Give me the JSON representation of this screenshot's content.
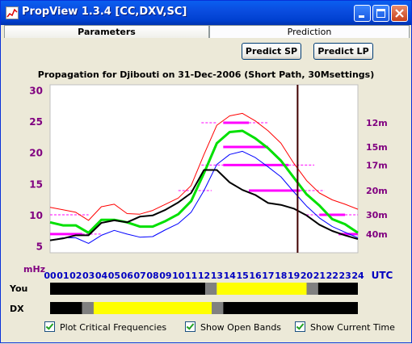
{
  "window": {
    "title": "PropView 1.3.4  [CC,DXV,SC]",
    "icon": "chart-icon"
  },
  "tabs": [
    {
      "label": "Parameters",
      "active": false
    },
    {
      "label": "Prediction",
      "active": true
    }
  ],
  "buttons": {
    "predict_sp": "Predict SP",
    "predict_lp": "Predict LP"
  },
  "checkboxes": [
    {
      "label": "Plot Critical Frequencies",
      "checked": true
    },
    {
      "label": "Show Open Bands",
      "checked": true
    },
    {
      "label": "Show Current Time",
      "checked": true
    }
  ],
  "chart_data": {
    "type": "line",
    "title": "Propagation for Djibouti on 31-Dec-2006 (Short Path, 30Msettings)",
    "ylabel_unit": "mHz",
    "xlabel_unit": "UTC",
    "x": [
      0,
      1,
      2,
      3,
      4,
      5,
      6,
      7,
      8,
      9,
      10,
      11,
      12,
      13,
      14,
      15,
      16,
      17,
      18,
      19,
      20,
      21,
      22,
      23,
      24
    ],
    "xticks": [
      "00",
      "01",
      "02",
      "03",
      "04",
      "05",
      "06",
      "07",
      "08",
      "09",
      "10",
      "11",
      "12",
      "13",
      "14",
      "15",
      "16",
      "17",
      "18",
      "19",
      "20",
      "21",
      "22",
      "23",
      "24"
    ],
    "yticks": [
      "5",
      "10",
      "15",
      "20",
      "25",
      "30"
    ],
    "ylim": [
      4,
      31
    ],
    "xlim": [
      0,
      24
    ],
    "series": [
      {
        "color": "#ff0000",
        "width": 1,
        "values": [
          11.3,
          10.9,
          10.5,
          9.2,
          11.4,
          11.8,
          10.3,
          10.2,
          10.8,
          11.8,
          12.8,
          14.8,
          19.8,
          24.5,
          26.0,
          26.4,
          25.2,
          23.6,
          21.6,
          18.4,
          15.6,
          13.6,
          12.5,
          11.8,
          11.0
        ]
      },
      {
        "color": "#00e000",
        "width": 3,
        "values": [
          8.9,
          8.4,
          8.4,
          7.2,
          9.3,
          9.3,
          8.9,
          8.2,
          8.2,
          9.1,
          10.2,
          12.3,
          16.8,
          21.6,
          23.4,
          23.6,
          22.4,
          20.8,
          18.8,
          16.1,
          13.4,
          11.6,
          9.4,
          8.6,
          7.2
        ]
      },
      {
        "color": "#0000ff",
        "width": 1,
        "values": [
          6.0,
          6.4,
          6.4,
          5.5,
          6.8,
          7.6,
          7.0,
          6.5,
          6.6,
          7.7,
          8.7,
          10.5,
          14.0,
          18.2,
          19.8,
          20.3,
          19.3,
          17.8,
          16.2,
          13.8,
          11.5,
          9.6,
          8.2,
          7.3,
          6.4
        ]
      },
      {
        "color": "#000000",
        "width": 2,
        "values": [
          6.0,
          6.3,
          6.8,
          6.8,
          8.8,
          9.2,
          8.9,
          9.8,
          10.0,
          10.9,
          12.1,
          13.6,
          17.3,
          17.3,
          15.3,
          14.1,
          13.3,
          12.0,
          11.7,
          11.1,
          10.0,
          8.5,
          7.5,
          6.8,
          6.2
        ]
      }
    ],
    "bands": [
      {
        "label": "12m",
        "freq": 24.9,
        "start": 11.8,
        "end": 13.0,
        "dashed": true
      },
      {
        "label": "12m",
        "freq": 24.9,
        "start": 13.5,
        "end": 15.5,
        "dashed": false
      },
      {
        "label": "12m",
        "freq": 24.9,
        "start": 15.5,
        "end": 17.0,
        "dashed": true
      },
      {
        "label": "15m",
        "freq": 21.0,
        "start": 13.5,
        "end": 17.0,
        "dashed": false
      },
      {
        "label": "17m",
        "freq": 18.1,
        "start": 11.8,
        "end": 13.5,
        "dashed": true
      },
      {
        "label": "17m",
        "freq": 18.1,
        "start": 13.5,
        "end": 18.6,
        "dashed": false
      },
      {
        "label": "17m",
        "freq": 18.1,
        "start": 18.6,
        "end": 20.6,
        "dashed": true
      },
      {
        "label": "20m",
        "freq": 14.0,
        "start": 10.0,
        "end": 12.6,
        "dashed": true
      },
      {
        "label": "20m",
        "freq": 14.0,
        "start": 15.5,
        "end": 19.5,
        "dashed": false
      },
      {
        "label": "20m",
        "freq": 14.0,
        "start": 19.5,
        "end": 21.4,
        "dashed": true
      },
      {
        "label": "30m",
        "freq": 10.1,
        "start": 0.0,
        "end": 3.0,
        "dashed": true
      },
      {
        "label": "30m",
        "freq": 10.1,
        "start": 20.0,
        "end": 21.0,
        "dashed": true
      },
      {
        "label": "30m",
        "freq": 10.1,
        "start": 21.0,
        "end": 23.0,
        "dashed": false
      },
      {
        "label": "30m",
        "freq": 10.1,
        "start": 23.0,
        "end": 24.0,
        "dashed": true
      },
      {
        "label": "40m",
        "freq": 7.0,
        "start": 0.0,
        "end": 2.5,
        "dashed": false
      },
      {
        "label": "40m",
        "freq": 7.0,
        "start": 2.5,
        "end": 4.0,
        "dashed": true
      },
      {
        "label": "40m",
        "freq": 7.0,
        "start": 22.5,
        "end": 24.0,
        "dashed": false
      }
    ],
    "band_labels": [
      {
        "label": "12m",
        "freq": 24.9
      },
      {
        "label": "15m",
        "freq": 21.0
      },
      {
        "label": "17m",
        "freq": 18.1
      },
      {
        "label": "20m",
        "freq": 14.0
      },
      {
        "label": "30m",
        "freq": 10.1
      },
      {
        "label": "40m",
        "freq": 7.0
      }
    ],
    "current_time": 19.3,
    "band_color": "#ff00ff"
  },
  "daylight": {
    "you_label": "You",
    "dx_label": "DX",
    "you": [
      {
        "from": 0,
        "to": 12.1,
        "state": "night"
      },
      {
        "from": 12.1,
        "to": 13.0,
        "state": "twilight"
      },
      {
        "from": 13.0,
        "to": 20.0,
        "state": "day"
      },
      {
        "from": 20.0,
        "to": 20.9,
        "state": "twilight"
      },
      {
        "from": 20.9,
        "to": 24,
        "state": "night"
      }
    ],
    "dx": [
      {
        "from": 0,
        "to": 2.5,
        "state": "night"
      },
      {
        "from": 2.5,
        "to": 3.4,
        "state": "twilight"
      },
      {
        "from": 3.4,
        "to": 12.6,
        "state": "day"
      },
      {
        "from": 12.6,
        "to": 13.5,
        "state": "twilight"
      },
      {
        "from": 13.5,
        "to": 24,
        "state": "night"
      }
    ],
    "colors": {
      "night": "#000000",
      "twilight": "#808080",
      "day": "#ffff00"
    }
  }
}
